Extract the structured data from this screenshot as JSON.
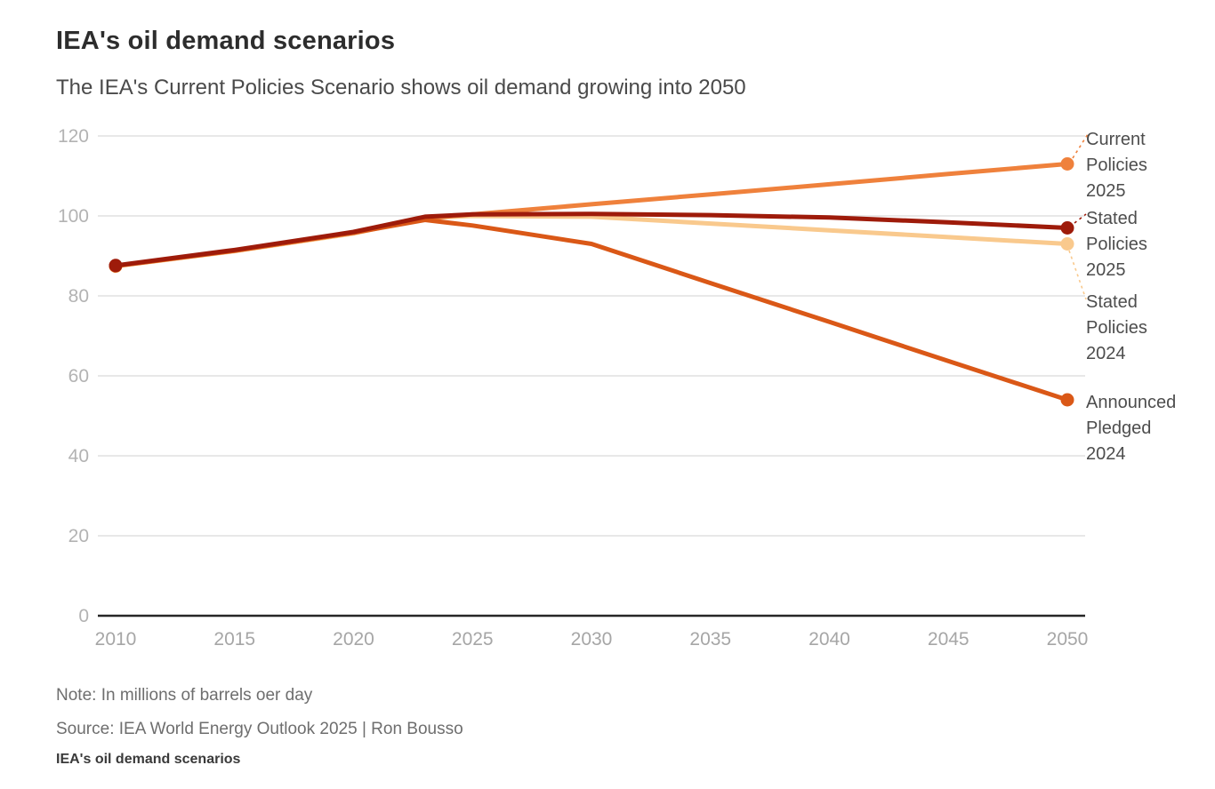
{
  "header": {
    "title": "IEA's oil demand scenarios",
    "subtitle": "The IEA's Current Policies Scenario shows oil demand growing into 2050"
  },
  "footer": {
    "note": "Note: In millions of barrels oer day",
    "source": "Source: IEA World Energy Outlook 2025 | Ron Bousso",
    "caption": "IEA's oil demand scenarios"
  },
  "chart_data": {
    "type": "line",
    "title": "IEA's oil demand scenarios",
    "subtitle": "The IEA's Current Policies Scenario shows oil demand growing into 2050",
    "unit_note": "millions of barrels per day",
    "x": [
      2010,
      2015,
      2020,
      2023,
      2025,
      2030,
      2035,
      2040,
      2045,
      2050
    ],
    "series": [
      {
        "name": "Current Policies 2025",
        "label_lines": "Current\nPolicies\n2025",
        "color": "#EF813C",
        "values": [
          87.5,
          91.3,
          95.8,
          99.4,
          100.4,
          102.9,
          105.4,
          107.9,
          110.5,
          113
        ]
      },
      {
        "name": "Stated Policies 2025",
        "label_lines": "Stated\nPolicies\n2025",
        "color": "#9E1B0A",
        "values": [
          87.6,
          91.5,
          96.0,
          99.8,
          100.4,
          100.5,
          100.2,
          99.6,
          98.4,
          97
        ]
      },
      {
        "name": "Stated Policies 2024",
        "label_lines": "Stated\nPolicies\n2024",
        "color": "#F9C98D",
        "values": [
          87.4,
          91.2,
          95.6,
          99.5,
          100.0,
          99.8,
          98.1,
          96.4,
          94.7,
          93
        ]
      },
      {
        "name": "Announced Pledged 2024",
        "label_lines": "Announced\nPledged\n2024",
        "color": "#DA5817",
        "values": [
          87.5,
          91.3,
          95.8,
          99.0,
          97.6,
          93.0,
          83.2,
          73.5,
          63.7,
          54
        ]
      }
    ],
    "xlabel": "",
    "ylabel": "",
    "xlim": [
      2010,
      2050
    ],
    "ylim": [
      0,
      120
    ],
    "xticks": [
      2010,
      2015,
      2020,
      2025,
      2030,
      2035,
      2040,
      2045,
      2050
    ],
    "yticks": [
      0,
      20,
      40,
      60,
      80,
      100,
      120
    ],
    "grid": true,
    "legend_position": "right-annotations",
    "colors": {
      "gridline": "#d9d9d9",
      "axis": "#262626",
      "y_tick_label": "#b3b3b3",
      "x_tick_label": "#a6a6a6",
      "annotation_text": "#4d4d4d"
    }
  }
}
